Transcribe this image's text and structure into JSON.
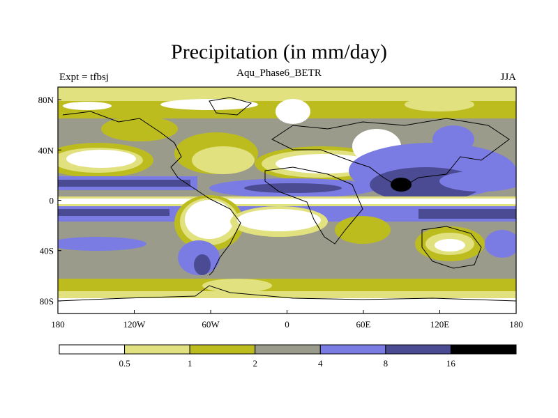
{
  "title": "Precipitation (in mm/day)",
  "subtitle": "Aqu_Phase6_BETR",
  "left_label": "Expt = tfbsj",
  "right_label": "JJA",
  "x_ticks": [
    "180",
    "120W",
    "60W",
    "0",
    "60E",
    "120E",
    "180"
  ],
  "y_ticks": [
    "80N",
    "40N",
    "0",
    "40S",
    "80S"
  ],
  "colorbar": {
    "labels": [
      "0.5",
      "1",
      "2",
      "4",
      "8",
      "16"
    ],
    "colors": [
      "#ffffff",
      "#e1e17f",
      "#bcbc1e",
      "#9b9b8b",
      "#7b7be4",
      "#4b4b94",
      "#000000"
    ]
  },
  "chart_data": {
    "type": "heatmap",
    "title": "Precipitation (in mm/day)",
    "subtitle": "Aqu_Phase6_BETR",
    "xlim": [
      -180,
      180
    ],
    "ylim": [
      -90,
      90
    ],
    "levels": [
      0.5,
      1,
      2,
      4,
      8,
      16
    ],
    "zonal_bands": [
      {
        "lat_range": [
          75,
          90
        ],
        "level": "0.5-1"
      },
      {
        "lat_range": [
          45,
          75
        ],
        "level": "2-4"
      },
      {
        "lat_range": [
          20,
          45
        ],
        "level": "0.5-2"
      },
      {
        "lat_range": [
          5,
          20
        ],
        "level": "4-16"
      },
      {
        "lat_range": [
          -5,
          5
        ],
        "level": "< 0.5"
      },
      {
        "lat_range": [
          -25,
          -5
        ],
        "level": "4-8"
      },
      {
        "lat_range": [
          -60,
          -25
        ],
        "level": "2-8"
      },
      {
        "lat_range": [
          -90,
          -60
        ],
        "level": "0.5-4"
      }
    ]
  }
}
